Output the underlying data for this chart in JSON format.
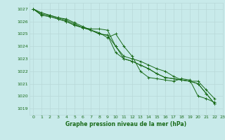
{
  "title": "Graphe pression niveau de la mer (hPa)",
  "bg_color": "#c8eaea",
  "grid_color": "#b8d8d8",
  "line_color": "#1a6b1a",
  "xlim": [
    -0.5,
    23
  ],
  "ylim": [
    1018.5,
    1027.5
  ],
  "yticks": [
    1019,
    1020,
    1021,
    1022,
    1023,
    1024,
    1025,
    1026,
    1027
  ],
  "xticks": [
    0,
    1,
    2,
    3,
    4,
    5,
    6,
    7,
    8,
    9,
    10,
    11,
    12,
    13,
    14,
    15,
    16,
    17,
    18,
    19,
    20,
    21,
    22,
    23
  ],
  "series": [
    [
      1027.0,
      1026.7,
      1026.5,
      1026.3,
      1026.2,
      1025.9,
      1025.6,
      1025.3,
      1025.1,
      1024.7,
      1025.0,
      1024.0,
      1023.2,
      1022.0,
      1021.5,
      1021.4,
      1021.3,
      1021.2,
      1021.4,
      1021.3,
      1020.0,
      1019.8,
      1019.5
    ],
    [
      1027.0,
      1026.6,
      1026.5,
      1026.3,
      1026.1,
      1025.8,
      1025.5,
      1025.4,
      1025.4,
      1025.3,
      1024.0,
      1023.2,
      1023.0,
      1022.8,
      1022.5,
      1022.2,
      1022.0,
      1021.6,
      1021.3,
      1021.2,
      1021.2,
      1020.5,
      1019.8
    ],
    [
      1027.0,
      1026.5,
      1026.4,
      1026.2,
      1026.0,
      1025.7,
      1025.5,
      1025.3,
      1025.0,
      1024.9,
      1024.0,
      1023.0,
      1022.8,
      1022.5,
      1022.2,
      1021.8,
      1021.5,
      1021.4,
      1021.3,
      1021.2,
      1021.0,
      1020.2,
      1019.4
    ],
    [
      1027.0,
      1026.5,
      1026.4,
      1026.2,
      1026.0,
      1025.7,
      1025.5,
      1025.3,
      1025.0,
      1024.9,
      1023.5,
      1023.0,
      1022.8,
      1022.5,
      1022.2,
      1021.8,
      1021.5,
      1021.4,
      1021.3,
      1021.2,
      1021.0,
      1020.2,
      1019.4
    ]
  ]
}
